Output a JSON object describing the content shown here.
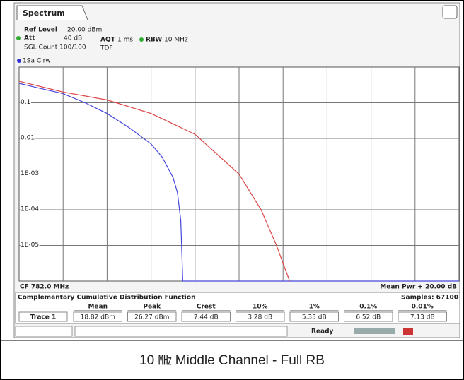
{
  "tab": "Spectrum",
  "header": {
    "ref_level_label": "Ref Level",
    "ref_level": "20.00 dBm",
    "att_label": "Att",
    "att": "40 dB",
    "aqt_label": "AQT",
    "aqt": "1 ms",
    "rbw_label": "RBW",
    "rbw": "10 MHz",
    "count": "SGL Count 100/100",
    "tdf": "TDF"
  },
  "trace_label": "1Sa Clrw",
  "chart_data": {
    "type": "line",
    "yscale": "log",
    "grid": true,
    "xlim": [
      0,
      20
    ],
    "ylim": [
      1e-06,
      1
    ],
    "yticks": [
      0.1,
      0.01,
      {
        "value": 0.001,
        "label": "1E-03"
      },
      {
        "value": 0.0001,
        "label": "1E-04"
      },
      {
        "value": 1e-05,
        "label": "1E-05"
      }
    ],
    "series": [
      {
        "color": "#4646dc",
        "x": [
          0,
          1,
          2,
          3,
          4,
          5,
          6,
          6.5,
          7,
          7.2,
          7.35,
          7.44,
          20
        ],
        "values": [
          0.35,
          0.25,
          0.18,
          0.1,
          0.05,
          0.02,
          0.007,
          0.003,
          0.0008,
          0.0003,
          5e-05,
          1e-06,
          1e-06
        ]
      },
      {
        "color": "#dc4646",
        "x": [
          0,
          2,
          4,
          6,
          8,
          10,
          11,
          11.7,
          12.3
        ],
        "values": [
          0.4,
          0.2,
          0.12,
          0.05,
          0.013,
          0.001,
          0.0001,
          1e-05,
          1e-06
        ]
      }
    ]
  },
  "footer": {
    "cf": "CF 782.0 MHz",
    "mean_pwr": "Mean Pwr + 20.00 dB"
  },
  "table": {
    "title": "Complementary Cumulative Distribution Function",
    "samples": "Samples: 67100",
    "headers": [
      "Mean",
      "Peak",
      "Crest",
      "10%",
      "1%",
      "0.1%",
      "0.01%"
    ],
    "row": [
      "Trace 1",
      "18.82 dBm",
      "26.27 dBm",
      "7.44 dB",
      "3.28 dB",
      "5.33 dB",
      "6.52 dB",
      "7.13 dB"
    ]
  },
  "status": "Ready",
  "caption": "10 ㎒ Middle Channel - Full RB"
}
